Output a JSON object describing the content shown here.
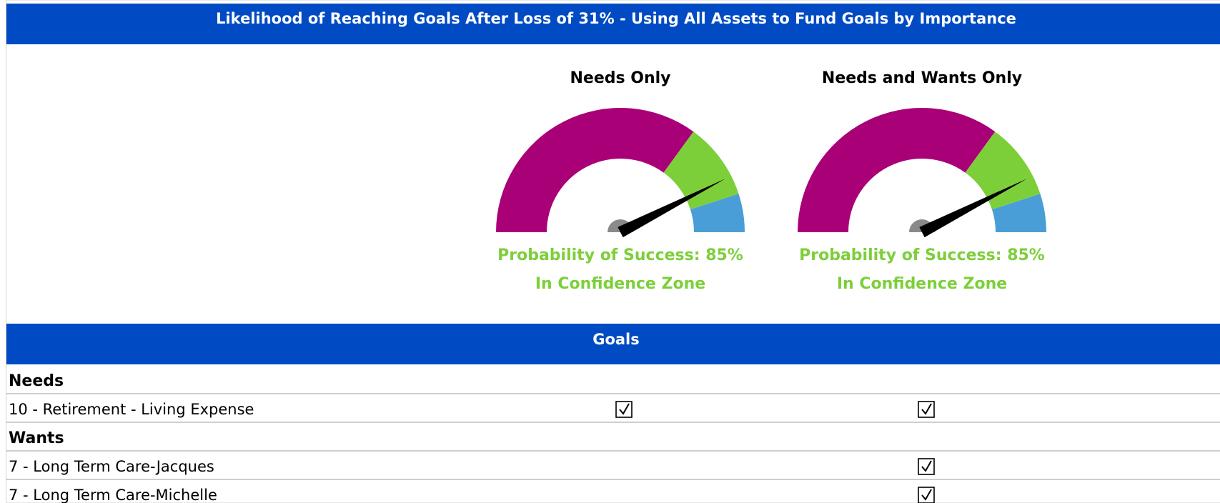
{
  "header": {
    "title": "Likelihood of Reaching Goals After Loss of 31% - Using All Assets to Fund Goals by Importance"
  },
  "gauges": [
    {
      "title": "Needs Only",
      "value": 85,
      "min": 0,
      "max": 100,
      "zones": [
        {
          "from": 0,
          "to": 70,
          "color": "#aa0077"
        },
        {
          "from": 70,
          "to": 90,
          "color": "#7dcf3a"
        },
        {
          "from": 90,
          "to": 100,
          "color": "#4a9ed8"
        }
      ],
      "success_label": "Probability of Success: 85%",
      "zone_label": "In Confidence Zone"
    },
    {
      "title": "Needs and Wants Only",
      "value": 85,
      "min": 0,
      "max": 100,
      "zones": [
        {
          "from": 0,
          "to": 70,
          "color": "#aa0077"
        },
        {
          "from": 70,
          "to": 90,
          "color": "#7dcf3a"
        },
        {
          "from": 90,
          "to": 100,
          "color": "#4a9ed8"
        }
      ],
      "success_label": "Probability of Success: 85%",
      "zone_label": "In Confidence Zone"
    }
  ],
  "goals": {
    "title": "Goals",
    "groups": [
      {
        "name": "Needs",
        "rows": [
          {
            "label": "10 - Retirement - Living Expense",
            "checks": [
              true,
              true
            ]
          }
        ]
      },
      {
        "name": "Wants",
        "rows": [
          {
            "label": "7 - Long Term Care-Jacques",
            "checks": [
              false,
              true
            ]
          },
          {
            "label": "7 - Long Term Care-Michelle",
            "checks": [
              false,
              true
            ]
          }
        ]
      }
    ]
  }
}
